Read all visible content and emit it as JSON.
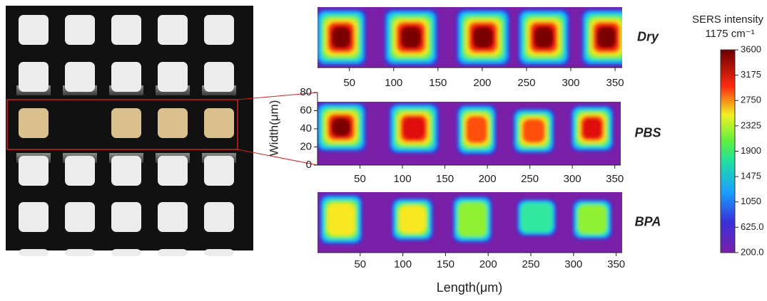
{
  "panels": [
    {
      "label": "Dry",
      "xlim": [
        14,
        358
      ],
      "xticks": [
        50,
        100,
        150,
        200,
        250,
        300,
        350
      ]
    },
    {
      "label": "PBS",
      "xlim": [
        0,
        357
      ],
      "xticks": [
        50,
        100,
        150,
        200,
        250,
        300,
        350
      ],
      "ylim": [
        0,
        80
      ],
      "yticks": [
        0,
        20,
        40,
        60,
        80
      ],
      "ylabel": "Width(μm)"
    },
    {
      "label": "BPA",
      "xlim": [
        0,
        357
      ],
      "xticks": [
        50,
        100,
        150,
        200,
        250,
        300,
        350
      ]
    }
  ],
  "xlabel": "Length(μm)",
  "colorbar": {
    "title": "SERS intensity",
    "subtitle": "1175 cm⁻¹",
    "lim": [
      200,
      3600
    ],
    "ticks": [
      3600,
      3175,
      2750,
      2325,
      1900,
      1475,
      1050,
      {
        "value": 625,
        "label": "625.0"
      },
      {
        "value": 200,
        "label": "200.0"
      }
    ]
  }
}
